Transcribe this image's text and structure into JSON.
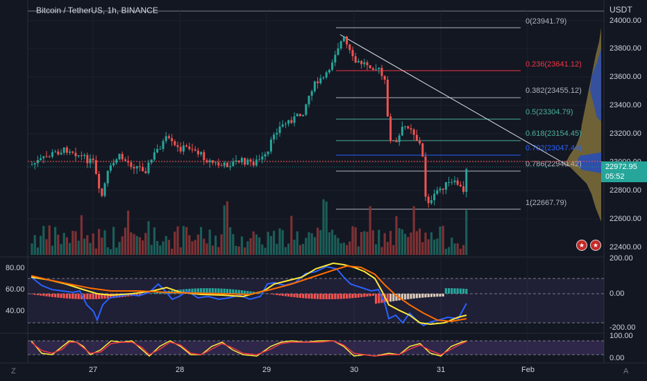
{
  "header": {
    "title": "Bitcoin / TetherUS, 1h, BINANCE",
    "currency": "USDT"
  },
  "price_tag": {
    "price": "22972.95",
    "countdown": "05:52"
  },
  "price_axis": [
    "24000.00",
    "23800.00",
    "23600.00",
    "23400.00",
    "23200.00",
    "23000.00",
    "22800.00",
    "22600.00",
    "22400.00"
  ],
  "fib_levels": [
    {
      "label": "0(23941.79)",
      "color": "#b2b5be"
    },
    {
      "label": "0.236(23641.12)",
      "color": "#f23645"
    },
    {
      "label": "0.382(23455.12)",
      "color": "#b2b5be"
    },
    {
      "label": "0.5(23304.79)",
      "color": "#4caf9a"
    },
    {
      "label": "0.618(23154.45)",
      "color": "#4caf9a"
    },
    {
      "label": "0.702(23047.44)",
      "color": "#2962ff"
    },
    {
      "label": "0.786(22940.42)",
      "color": "#b2b5be"
    },
    {
      "label": "1(22667.79)",
      "color": "#b2b5be"
    }
  ],
  "rsi_axis": [
    "80.00",
    "60.00",
    "40.00"
  ],
  "macd_axis": [
    "200.00",
    "0.00",
    "-200.00"
  ],
  "stoch_axis": [
    "100.00",
    "0.00"
  ],
  "time_axis": [
    "27",
    "28",
    "29",
    "30",
    "31",
    "Feb"
  ],
  "corner": {
    "left": "Z",
    "right": "A"
  },
  "flags": {
    "icon1": "us-flag-icon",
    "icon2": "us-flag-icon"
  },
  "colors": {
    "up": "#26a69a",
    "down": "#ef5350",
    "bg": "#131722"
  }
}
